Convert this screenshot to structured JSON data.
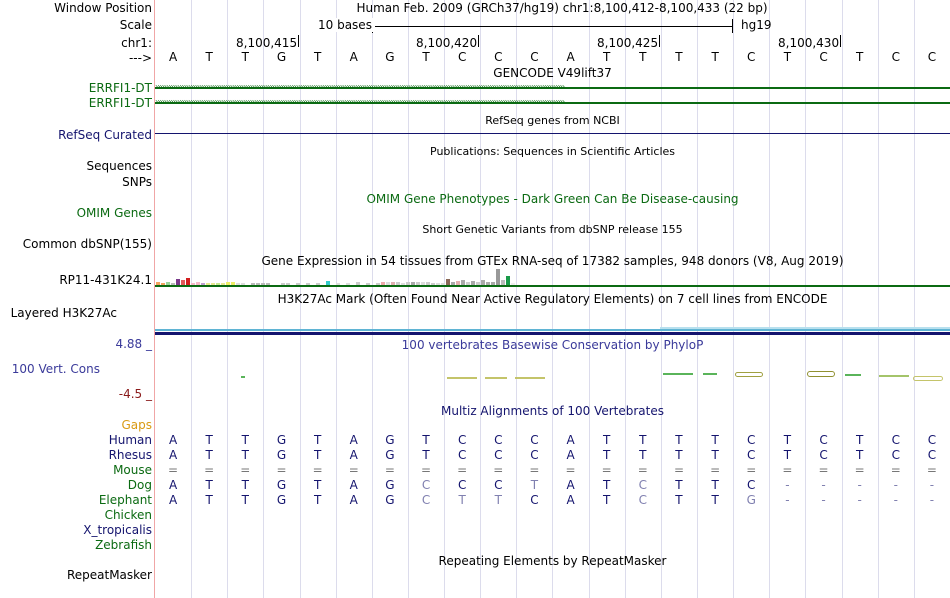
{
  "labels": {
    "window_position": "Window Position",
    "scale": "Scale",
    "chr": "chr1:",
    "arrow": "--->",
    "errfi1_a": "ERRFI1-DT",
    "errfi1_b": "ERRFI1-DT",
    "refseq": "RefSeq Curated",
    "sequences": "Sequences",
    "snps": "SNPs",
    "omim": "OMIM Genes",
    "common_dbsnp": "Common dbSNP(155)",
    "rp11": "RP11-431K24.1",
    "layered": "Layered H3K27Ac",
    "phylop_max": "4.88 _",
    "vert_cons": "100 Vert. Cons",
    "phylop_min": "-4.5 _",
    "gaps": "Gaps",
    "human": "Human",
    "rhesus": "Rhesus",
    "mouse": "Mouse",
    "dog": "Dog",
    "elephant": "Elephant",
    "chicken": "Chicken",
    "xtrop": "X_tropicalis",
    "zebrafish": "Zebrafish",
    "repeatmasker": "RepeatMasker"
  },
  "header": {
    "assembly": "Human Feb. 2009 (GRCh37/hg19)   chr1:8,100,412-8,100,433 (22 bp)",
    "scale_text": "10 bases",
    "hg19": "hg19",
    "coords": [
      "8,100,415",
      "8,100,420",
      "8,100,425",
      "8,100,430"
    ]
  },
  "bases": [
    "A",
    "T",
    "T",
    "G",
    "T",
    "A",
    "G",
    "T",
    "C",
    "C",
    "C",
    "A",
    "T",
    "T",
    "T",
    "T",
    "C",
    "T",
    "C",
    "T",
    "C",
    "C"
  ],
  "tracks": {
    "gencode_title": "GENCODE V49lift37",
    "refseq_title": "RefSeq genes from NCBI",
    "publications_title": "Publications: Sequences in Scientific Articles",
    "omim_title": "OMIM Gene Phenotypes - Dark Green Can Be Disease-causing",
    "dbsnp_title": "Short Genetic Variants from dbSNP release 155",
    "gtex_title": "Gene Expression in 54 tissues from GTEx RNA-seq of 17382 samples, 948 donors (V8, Aug 2019)",
    "h3k27ac_title": "H3K27Ac Mark (Often Found Near Active Regulatory Elements) on 7 cell lines from ENCODE",
    "phylop_title": "100 vertebrates Basewise Conservation by PhyloP",
    "multiz_title": "Multiz Alignments of 100 Vertebrates",
    "repeat_title": "Repeating Elements by RepeatMasker"
  },
  "alignment": {
    "rhesus": [
      "A",
      "T",
      "T",
      "G",
      "T",
      "A",
      "G",
      "T",
      "C",
      "C",
      "C",
      "A",
      "T",
      "T",
      "T",
      "T",
      "C",
      "T",
      "C",
      "T",
      "C",
      "C"
    ],
    "mouse": [
      "=",
      "=",
      "=",
      "=",
      "=",
      "=",
      "=",
      "=",
      "=",
      "=",
      "=",
      "=",
      "=",
      "=",
      "=",
      "=",
      "=",
      "=",
      "=",
      "=",
      "=",
      "="
    ],
    "dog": [
      "A",
      "T",
      "T",
      "G",
      "T",
      "A",
      "G",
      "C",
      "C",
      "C",
      "T",
      "A",
      "T",
      "C",
      "T",
      "T",
      "C",
      "-",
      "-",
      "-",
      "-",
      "-"
    ],
    "elephant": [
      "A",
      "T",
      "T",
      "G",
      "T",
      "A",
      "G",
      "C",
      "T",
      "T",
      "C",
      "A",
      "T",
      "C",
      "T",
      "T",
      "G",
      "-",
      "-",
      "-",
      "-",
      "-"
    ]
  },
  "colors": {
    "gene_green": "#0b6a12",
    "navy": "#14146e",
    "cons_blue": "#3a3a9a",
    "gaps_orange": "#d99a14",
    "mismatch_gray": "#8080b0"
  }
}
